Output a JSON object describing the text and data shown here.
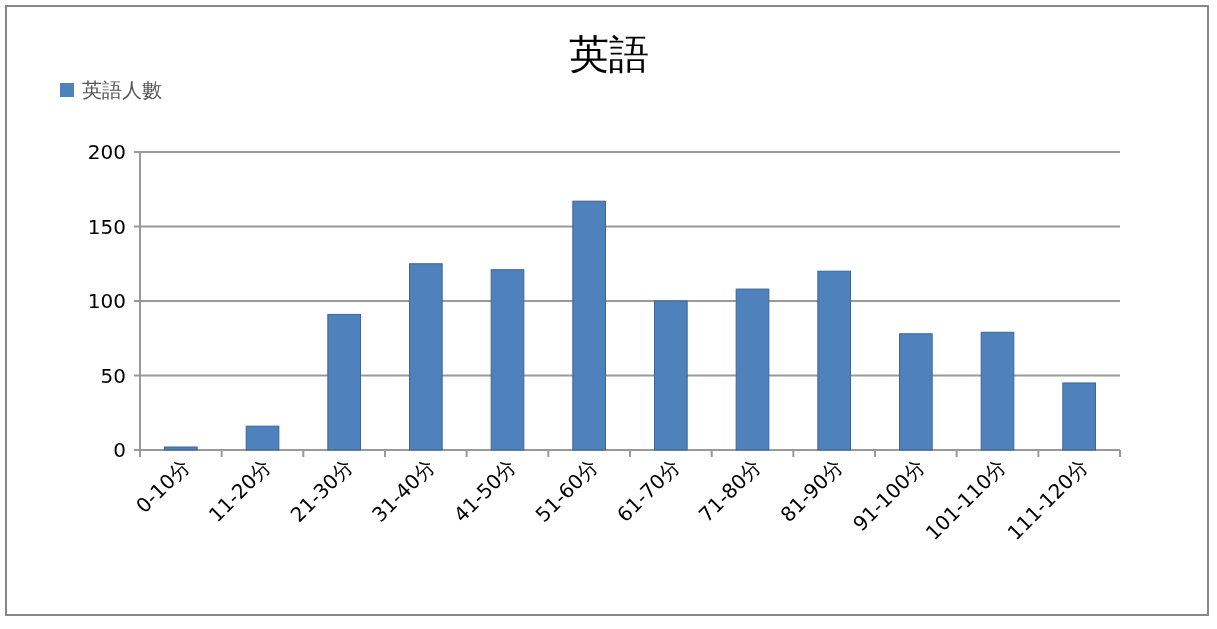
{
  "chart_data": {
    "type": "bar",
    "title": "英語",
    "categories": [
      "0-10分",
      "11-20分",
      "21-30分",
      "31-40分",
      "41-50分",
      "51-60分",
      "61-70分",
      "71-80分",
      "81-90分",
      "91-100分",
      "101-110分",
      "111-120分"
    ],
    "series": [
      {
        "name": "英語人數",
        "color": "#4f81bd",
        "values": [
          2,
          16,
          91,
          125,
          121,
          167,
          100,
          108,
          120,
          78,
          79,
          45
        ]
      }
    ],
    "ylim": [
      0,
      200
    ],
    "yticks": [
      0,
      50,
      100,
      150,
      200
    ],
    "grid": "y",
    "legend": "top left"
  }
}
